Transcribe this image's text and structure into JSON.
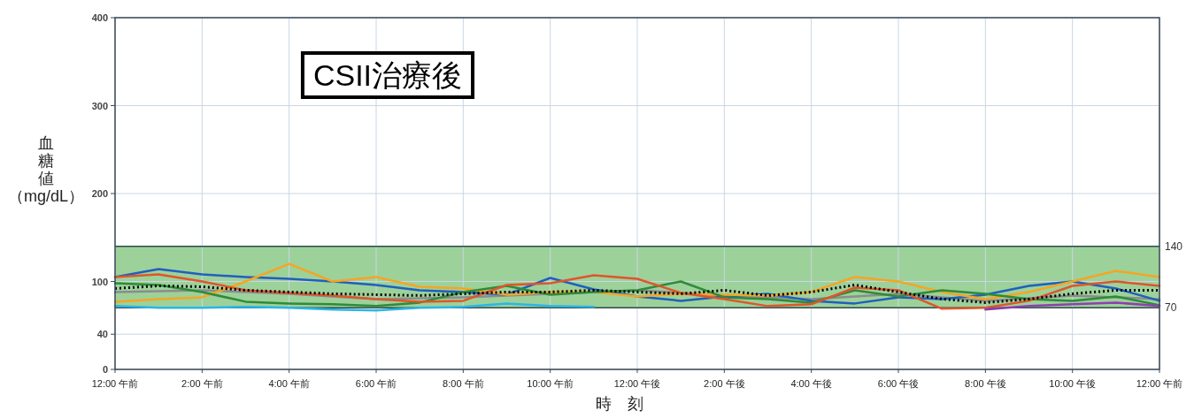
{
  "chart_data": {
    "type": "line",
    "title": "CSII治療後",
    "xlabel": "時　刻",
    "ylabel": "血糖値（mg/dL）",
    "categories": [
      "12:00 午前",
      null,
      "2:00 午前",
      null,
      "4:00 午前",
      null,
      "6:00 午前",
      null,
      "8:00 午前",
      null,
      "10:00 午前",
      null,
      "12:00 午後",
      null,
      "2:00 午後",
      null,
      "4:00 午後",
      null,
      "6:00 午後",
      null,
      "8:00 午後",
      null,
      "10:00 午後",
      null,
      "12:00 午前"
    ],
    "ylim": [
      0,
      400
    ],
    "yticks": [
      0,
      40,
      100,
      200,
      300,
      400
    ],
    "grid": true,
    "bands": [
      {
        "axis": "y",
        "from": 70,
        "to": 140,
        "color": "#9dd19a"
      }
    ],
    "ref_lines": [
      {
        "axis": "y",
        "value": 140,
        "label": "140",
        "color": "#2f4a4a"
      },
      {
        "axis": "y",
        "value": 70,
        "label": "70",
        "color": "#2f4a4a"
      }
    ],
    "series": [
      {
        "color": "#8c8c8c",
        "values": [
          88,
          89,
          90,
          88,
          86,
          83,
          80,
          81,
          82,
          84,
          86,
          88,
          90,
          87,
          84,
          82,
          80,
          83,
          86,
          82,
          78,
          81,
          84,
          82,
          80
        ]
      },
      {
        "color": "#2bb5e6",
        "values": [
          72,
          70,
          70,
          71,
          70,
          68,
          67,
          70,
          71,
          75,
          72,
          71,
          null,
          null,
          null,
          null,
          null,
          null,
          null,
          null,
          null,
          null,
          null,
          null,
          null
        ]
      },
      {
        "color": "#1f5fbf",
        "values": [
          105,
          114,
          108,
          105,
          103,
          100,
          96,
          90,
          88,
          85,
          104,
          91,
          83,
          78,
          83,
          86,
          78,
          75,
          82,
          80,
          85,
          95,
          100,
          92,
          78
        ]
      },
      {
        "color": "#f5a524",
        "values": [
          77,
          80,
          82,
          100,
          120,
          100,
          105,
          94,
          92,
          85,
          88,
          88,
          83,
          86,
          85,
          84,
          88,
          105,
          100,
          88,
          80,
          88,
          100,
          112,
          105
        ]
      },
      {
        "color": "#2e8b3a",
        "values": [
          98,
          96,
          88,
          77,
          75,
          74,
          72,
          76,
          88,
          95,
          85,
          88,
          90,
          100,
          82,
          80,
          76,
          90,
          83,
          90,
          86,
          80,
          78,
          83,
          73
        ]
      },
      {
        "color": "#e0552a",
        "values": [
          105,
          108,
          100,
          90,
          87,
          84,
          80,
          77,
          78,
          96,
          98,
          107,
          103,
          87,
          80,
          72,
          74,
          93,
          90,
          69,
          70,
          78,
          95,
          100,
          95
        ]
      },
      {
        "color": "#8e3fb0",
        "values": [
          null,
          null,
          null,
          null,
          null,
          null,
          null,
          null,
          null,
          null,
          null,
          null,
          null,
          null,
          null,
          null,
          null,
          null,
          null,
          null,
          68,
          72,
          74,
          76,
          72
        ]
      },
      {
        "color": "#000000",
        "line_style": "dotted",
        "values": [
          92,
          95,
          94,
          90,
          88,
          86,
          85,
          84,
          86,
          88,
          88,
          90,
          88,
          86,
          90,
          84,
          88,
          96,
          88,
          80,
          76,
          80,
          86,
          90,
          90
        ]
      }
    ]
  }
}
